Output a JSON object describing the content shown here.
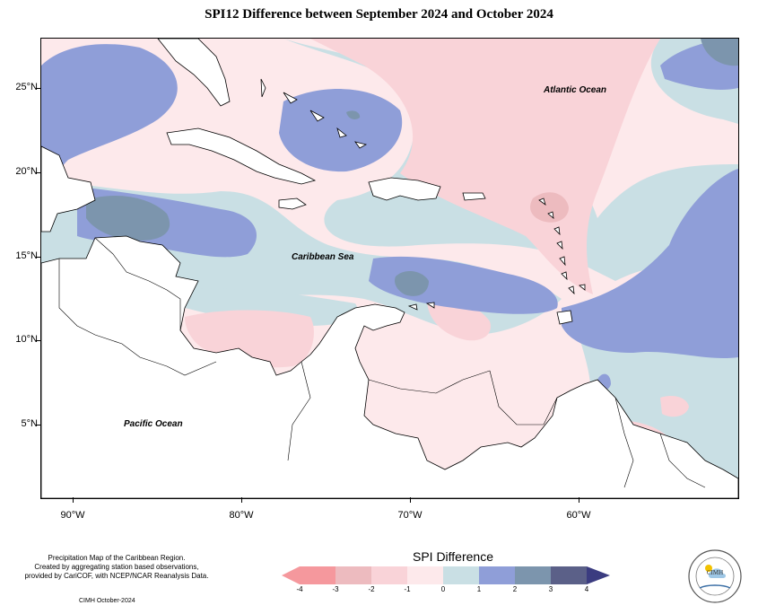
{
  "title": "SPI12 Difference between September 2024 and October 2024",
  "axes": {
    "y_labels": [
      "25°N",
      "20°N",
      "15°N",
      "10°N",
      "5°N"
    ],
    "x_labels": [
      "90°W",
      "80°W",
      "70°W",
      "60°W"
    ]
  },
  "labels": {
    "atlantic": "Atlantic Ocean",
    "caribbean": "Caribbean Sea",
    "pacific": "Pacific Ocean"
  },
  "credits": {
    "line1": "Precipitation Map of the Caribbean Region.",
    "line2": "Created by aggregating station based observations,",
    "line3": "provided by CariCOF, with NCEP/NCAR Reanalysis Data.",
    "date": "CIMH October-2024"
  },
  "legend": {
    "title": "SPI Difference",
    "ticks": [
      "-4",
      "-3",
      "-2",
      "-1",
      "0",
      "1",
      "2",
      "3",
      "4"
    ],
    "colors": {
      "m4_m3": "#f5989d",
      "m3_m2": "#edbbbf",
      "m2_m1": "#f9d3d8",
      "m1_0": "#fde9eb",
      "p0_1": "#c9dfe4",
      "p1_2": "#8f9ed8",
      "p2_3": "#7c95ad",
      "p3_4": "#5b6088",
      "over": "#3b3c80"
    }
  },
  "logo": {
    "text": "CIMH"
  }
}
